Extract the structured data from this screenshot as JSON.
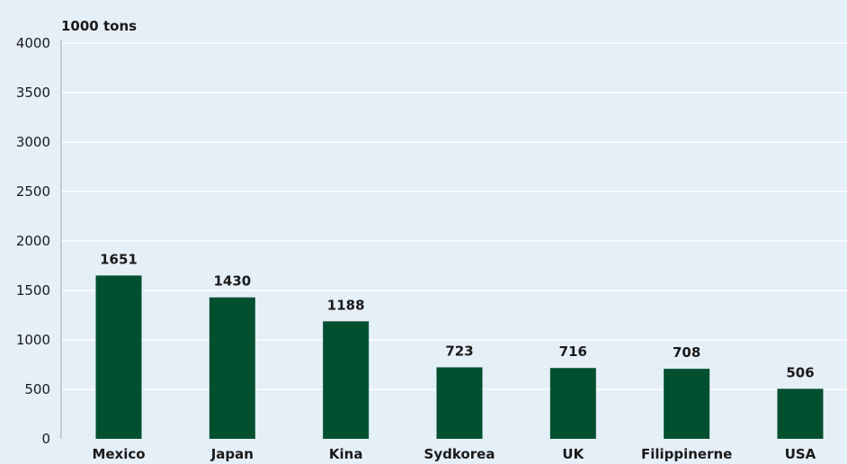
{
  "chart_data": {
    "type": "bar",
    "title": "",
    "unit_label": "1000 tons",
    "xlabel": "",
    "ylabel": "1000 tons",
    "categories": [
      "Mexico",
      "Japan",
      "Kina",
      "Sydkorea",
      "UK",
      "Filippinerne",
      "USA"
    ],
    "values": [
      1651,
      1430,
      1188,
      723,
      716,
      708,
      506
    ],
    "ylim": [
      0,
      4000
    ],
    "yticks": [
      0,
      500,
      1000,
      1500,
      2000,
      2500,
      3000,
      3500,
      4000
    ],
    "grid": true,
    "legend": "none",
    "colors": {
      "background": "#e5eff8",
      "bar": "#005030",
      "grid": "#ffffff",
      "text": "#1a1a1a",
      "axis": "#9aa8b4"
    }
  }
}
